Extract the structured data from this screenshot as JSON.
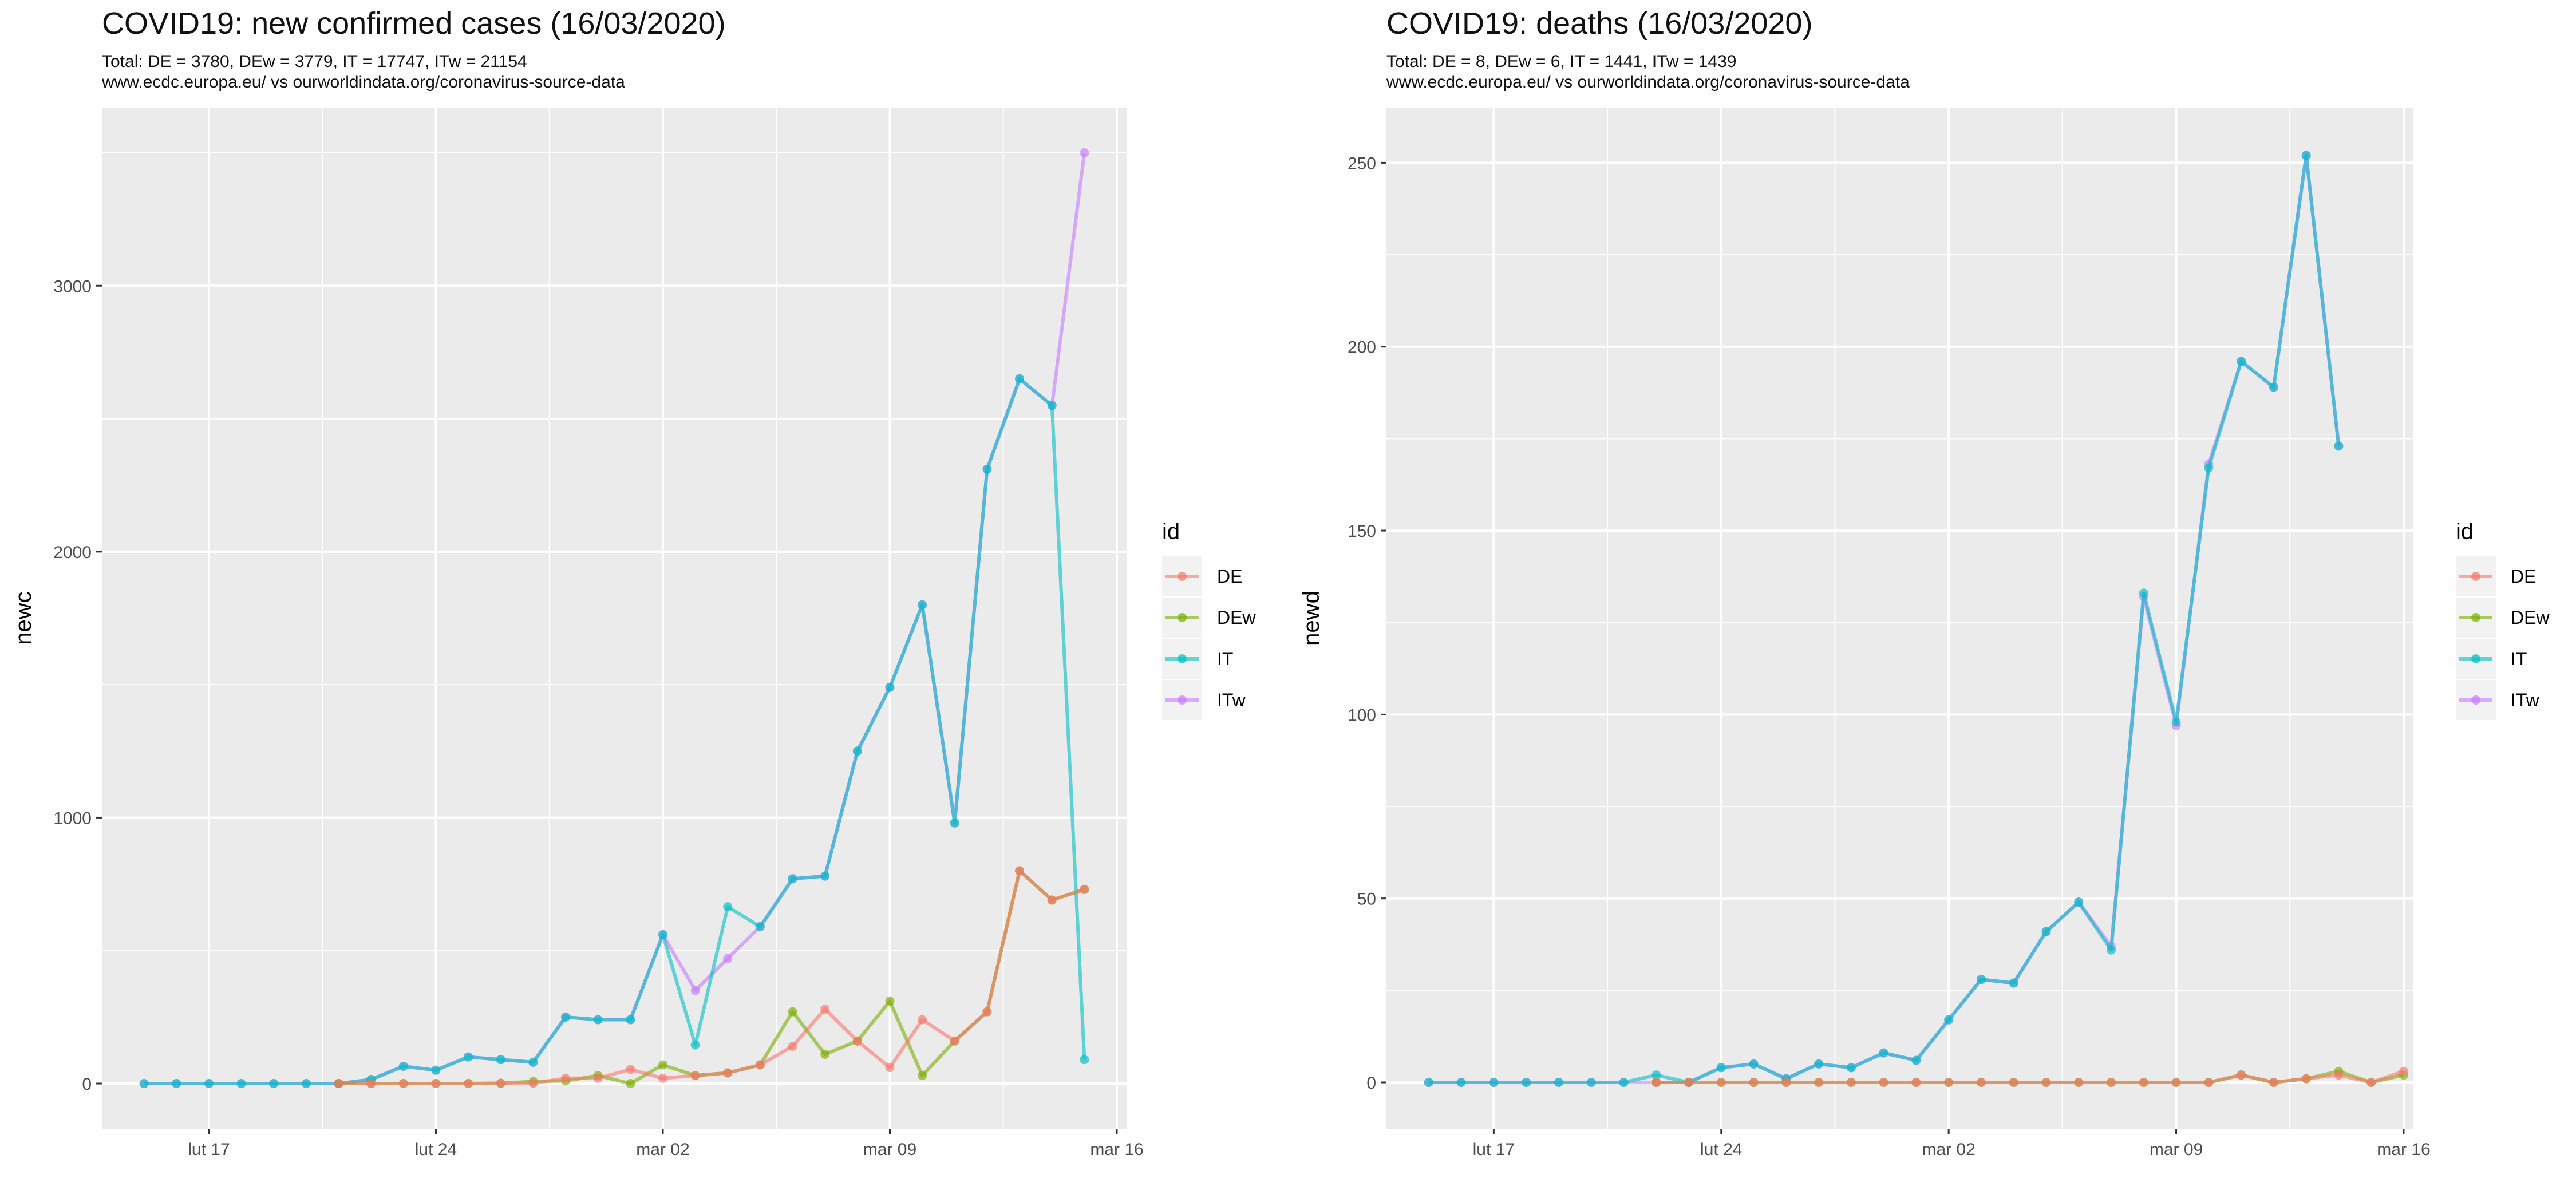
{
  "panels": [
    {
      "title": "COVID19: new confirmed cases (16/03/2020)",
      "subtitle1": "Total: DE = 3780, DEw = 3779, IT = 17747, ITw = 21154",
      "subtitle2": "www.ecdc.europa.eu/ vs ourworldindata.org/coronavirus-source-data"
    },
    {
      "title": "COVID19: deaths (16/03/2020)",
      "subtitle1": "Total: DE = 8, DEw = 6, IT = 1441, ITw = 1439",
      "subtitle2": "www.ecdc.europa.eu/ vs ourworldindata.org/coronavirus-source-data"
    }
  ],
  "legend": {
    "title": "id",
    "entries": [
      "DE",
      "DEw",
      "IT",
      "ITw"
    ]
  },
  "colors": {
    "DE": "#F8766D",
    "DEw": "#7CAE00",
    "IT": "#00BFC4",
    "ITw": "#C77CFF",
    "panel_bg": "#EBEBEB",
    "grid": "#FFFFFF"
  },
  "chart_data": [
    {
      "type": "line",
      "title": "COVID19: new confirmed cases (16/03/2020)",
      "ylabel": "newc",
      "xlabel": "",
      "x_start_date": "2020-02-15",
      "x_tick_labels": [
        "lut 17",
        "lut 24",
        "mar 02",
        "mar 09",
        "mar 16"
      ],
      "x_tick_positions": [
        2,
        9,
        16,
        23,
        30
      ],
      "xlim": [
        -1.3,
        30.3
      ],
      "y_ticks": [
        0,
        1000,
        2000,
        3000
      ],
      "ylim": [
        -170,
        3670
      ],
      "legend": "right",
      "grid": true,
      "series": [
        {
          "name": "DE",
          "x_start": 6,
          "values": [
            0,
            0,
            0,
            0,
            0,
            1,
            1,
            20,
            20,
            53,
            20,
            30,
            40,
            70,
            140,
            280,
            160,
            60,
            240,
            160,
            270,
            800,
            690,
            730
          ]
        },
        {
          "name": "DEw",
          "x_start": 6,
          "values": [
            0,
            0,
            0,
            0,
            0,
            1,
            8,
            10,
            30,
            0,
            70,
            30,
            40,
            70,
            270,
            110,
            160,
            310,
            30,
            160,
            270,
            800,
            690,
            730
          ]
        },
        {
          "name": "IT",
          "x_start": 0,
          "values": [
            0,
            0,
            0,
            0,
            0,
            0,
            0,
            15,
            65,
            50,
            100,
            90,
            80,
            250,
            240,
            240,
            560,
            145,
            665,
            590,
            770,
            780,
            1250,
            1490,
            1800,
            980,
            2310,
            2650,
            2550,
            90
          ]
        },
        {
          "name": "ITw",
          "x_start": 0,
          "values": [
            0,
            0,
            0,
            0,
            0,
            0,
            0,
            15,
            65,
            50,
            100,
            90,
            80,
            250,
            240,
            240,
            560,
            350,
            470,
            590,
            770,
            780,
            1250,
            1490,
            1800,
            980,
            2310,
            2650,
            2550,
            3500
          ]
        }
      ]
    },
    {
      "type": "line",
      "title": "COVID19: deaths (16/03/2020)",
      "ylabel": "newd",
      "xlabel": "",
      "x_start_date": "2020-02-15",
      "x_tick_labels": [
        "lut 17",
        "lut 24",
        "mar 02",
        "mar 09",
        "mar 16"
      ],
      "x_tick_positions": [
        2,
        9,
        16,
        23,
        30
      ],
      "xlim": [
        -1.3,
        30.3
      ],
      "y_ticks": [
        0,
        50,
        100,
        150,
        200,
        250
      ],
      "ylim": [
        -12.6,
        265
      ],
      "legend": "right",
      "grid": true,
      "series": [
        {
          "name": "DE",
          "x_start": 7,
          "values": [
            0,
            0,
            0,
            0,
            0,
            0,
            0,
            0,
            0,
            0,
            0,
            0,
            0,
            0,
            0,
            0,
            0,
            0,
            2,
            0,
            1,
            2,
            0,
            3
          ]
        },
        {
          "name": "DEw",
          "x_start": 7,
          "values": [
            0,
            0,
            0,
            0,
            0,
            0,
            0,
            0,
            0,
            0,
            0,
            0,
            0,
            0,
            0,
            0,
            0,
            0,
            2,
            0,
            1,
            3,
            0,
            2
          ]
        },
        {
          "name": "IT",
          "x_start": 0,
          "values": [
            0,
            0,
            0,
            0,
            0,
            0,
            0,
            2,
            0,
            4,
            5,
            1,
            5,
            4,
            8,
            6,
            17,
            28,
            27,
            41,
            49,
            36,
            133,
            98,
            167,
            196,
            189,
            252,
            173
          ]
        },
        {
          "name": "ITw",
          "x_start": 0,
          "values": [
            0,
            0,
            0,
            0,
            0,
            0,
            0,
            0,
            0,
            4,
            5,
            1,
            5,
            4,
            8,
            6,
            17,
            28,
            27,
            41,
            49,
            37,
            132,
            97,
            168,
            196,
            189,
            252,
            173
          ]
        }
      ]
    }
  ]
}
